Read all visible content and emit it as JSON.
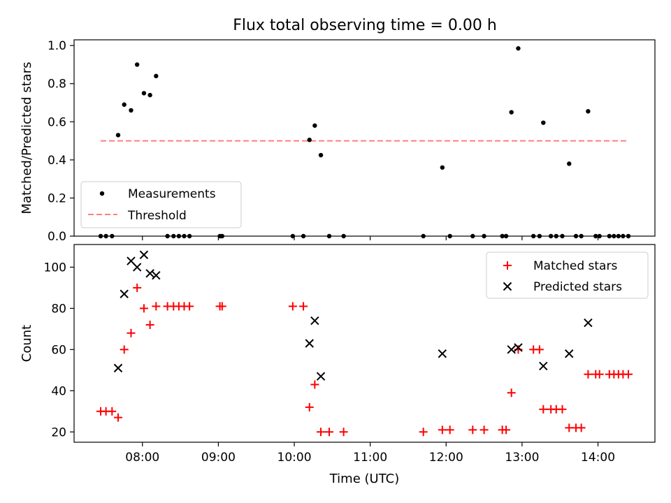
{
  "chart_data": [
    {
      "type": "scatter",
      "title": "Flux total observing time = 0.00 h",
      "ylabel": "Matched/Predicted stars",
      "ylim": [
        0,
        1.03
      ],
      "yticks": [
        0.0,
        0.2,
        0.4,
        0.6,
        0.8,
        1.0
      ],
      "ytick_labels": [
        "0.0",
        "0.2",
        "0.4",
        "0.6",
        "0.8",
        "1.0"
      ],
      "legend_position": "lower-left",
      "threshold": {
        "name": "Threshold",
        "value": 0.5,
        "x_range": [
          7.45,
          14.4
        ],
        "color": "#ff7f7f"
      },
      "series": [
        {
          "name": "Measurements",
          "color": "#000000",
          "x": [
            7.45,
            7.52,
            7.6,
            7.68,
            7.76,
            7.85,
            7.93,
            8.02,
            8.1,
            8.18,
            8.33,
            8.41,
            8.48,
            8.55,
            8.62,
            9.02,
            9.05,
            9.98,
            10.12,
            10.2,
            10.27,
            10.35,
            10.46,
            10.65,
            11.7,
            11.95,
            12.05,
            12.35,
            12.5,
            12.74,
            12.79,
            12.86,
            12.95,
            13.15,
            13.23,
            13.28,
            13.38,
            13.45,
            13.53,
            13.62,
            13.71,
            13.78,
            13.87,
            13.97,
            14.02,
            14.15,
            14.21,
            14.27,
            14.33,
            14.4
          ],
          "y": [
            0.0,
            0.0,
            0.0,
            0.53,
            0.69,
            0.66,
            0.9,
            0.75,
            0.74,
            0.84,
            0.0,
            0.0,
            0.0,
            0.0,
            0.0,
            0.0,
            0.0,
            0.0,
            0.0,
            0.505,
            0.58,
            0.425,
            0.0,
            0.0,
            0.0,
            0.36,
            0.0,
            0.0,
            0.0,
            0.0,
            0.0,
            0.65,
            0.985,
            0.0,
            0.0,
            0.595,
            0.0,
            0.0,
            0.0,
            0.38,
            0.0,
            0.0,
            0.655,
            0.0,
            0.0,
            0.0,
            0.0,
            0.0,
            0.0,
            0.0
          ]
        }
      ]
    },
    {
      "type": "scatter",
      "xlabel": "Time (UTC)",
      "ylabel": "Count",
      "ylim": [
        15,
        111
      ],
      "yticks": [
        20,
        40,
        60,
        80,
        100
      ],
      "ytick_labels": [
        "20",
        "40",
        "60",
        "80",
        "100"
      ],
      "xlim": [
        7.1,
        14.75
      ],
      "xticks": [
        8,
        9,
        10,
        11,
        12,
        13,
        14
      ],
      "xtick_labels": [
        "08:00",
        "09:00",
        "10:00",
        "11:00",
        "12:00",
        "13:00",
        "14:00"
      ],
      "legend_position": "upper-right",
      "series": [
        {
          "name": "Matched stars",
          "marker": "plus",
          "color": "#ff0000",
          "x": [
            7.45,
            7.52,
            7.6,
            7.68,
            7.76,
            7.85,
            7.93,
            8.02,
            8.1,
            8.18,
            8.33,
            8.41,
            8.48,
            8.55,
            8.62,
            9.02,
            9.05,
            9.98,
            10.12,
            10.2,
            10.27,
            10.35,
            10.46,
            10.65,
            11.7,
            11.95,
            12.05,
            12.35,
            12.5,
            12.74,
            12.79,
            12.86,
            12.95,
            13.15,
            13.23,
            13.28,
            13.38,
            13.45,
            13.53,
            13.62,
            13.71,
            13.78,
            13.87,
            13.97,
            14.02,
            14.15,
            14.21,
            14.27,
            14.33,
            14.4
          ],
          "y": [
            30,
            30,
            30,
            27,
            60,
            68,
            90,
            80,
            72,
            81,
            81,
            81,
            81,
            81,
            81,
            81,
            81,
            81,
            81,
            32,
            43,
            20,
            20,
            20,
            20,
            21,
            21,
            21,
            21,
            21,
            21,
            39,
            60,
            60,
            60,
            31,
            31,
            31,
            31,
            22,
            22,
            22,
            48,
            48,
            48,
            48,
            48,
            48,
            48,
            48
          ]
        },
        {
          "name": "Predicted stars",
          "marker": "x",
          "color": "#000000",
          "x": [
            7.68,
            7.76,
            7.85,
            7.93,
            8.02,
            8.1,
            8.18,
            10.2,
            10.27,
            10.35,
            11.95,
            12.86,
            12.95,
            13.28,
            13.62,
            13.87
          ],
          "y": [
            51,
            87,
            103,
            100,
            106,
            97,
            96,
            63,
            74,
            47,
            58,
            60,
            61,
            52,
            58,
            73
          ]
        }
      ]
    }
  ]
}
